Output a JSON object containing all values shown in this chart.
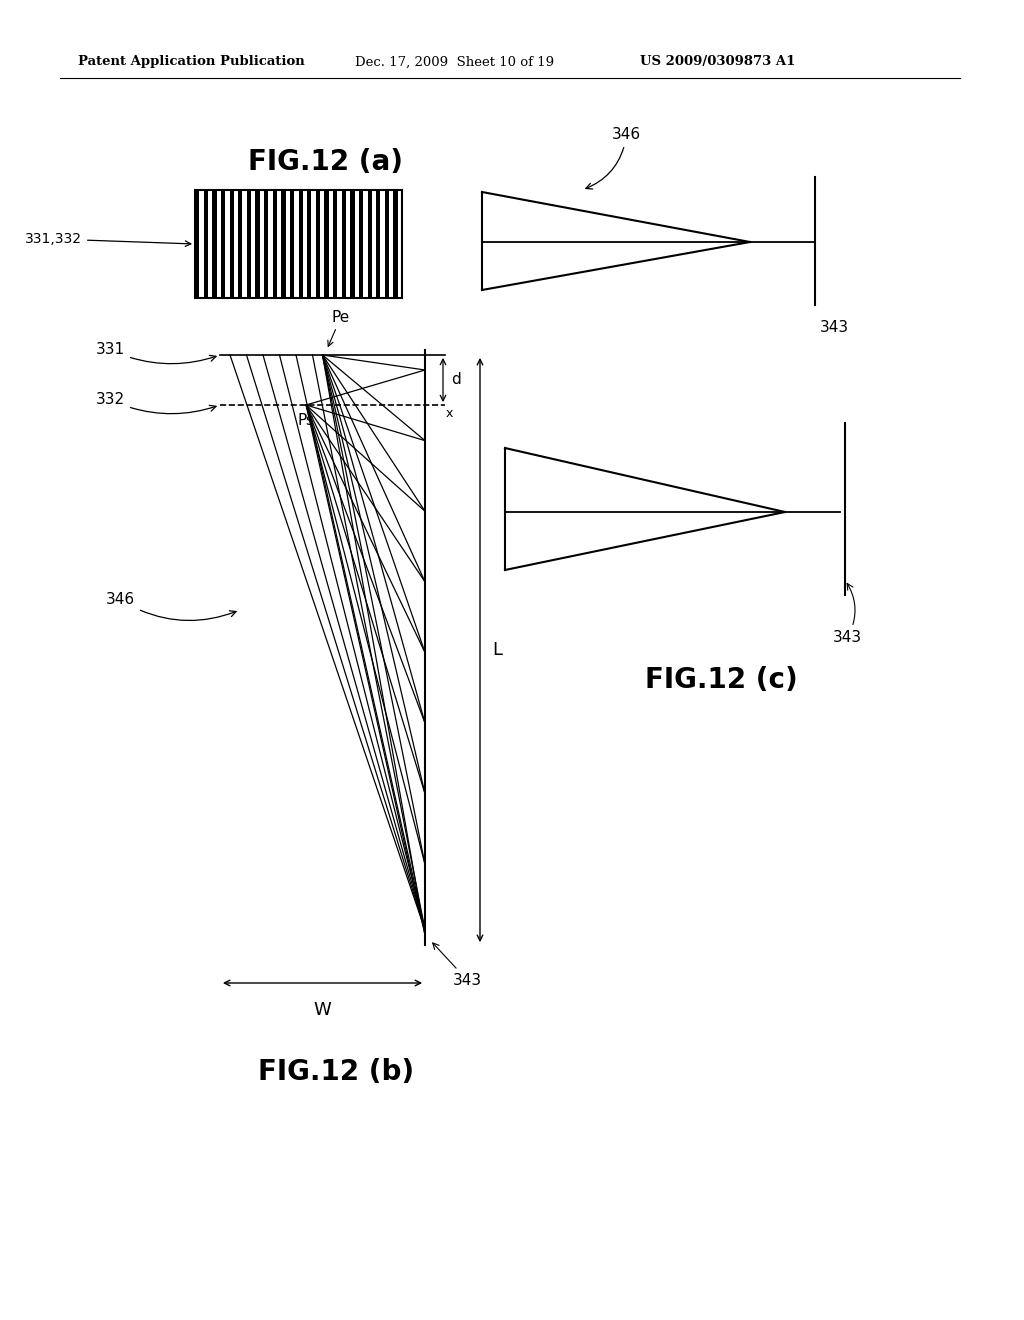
{
  "bg_color": "#ffffff",
  "header_left": "Patent Application Publication",
  "header_mid": "Dec. 17, 2009  Sheet 10 of 19",
  "header_right": "US 2009/0309873 A1",
  "fig_a_title": "FIG.12 (a)",
  "fig_b_title": "FIG.12 (b)",
  "fig_c_title": "FIG.12 (c)",
  "line_color": "#000000",
  "text_color": "#000000"
}
